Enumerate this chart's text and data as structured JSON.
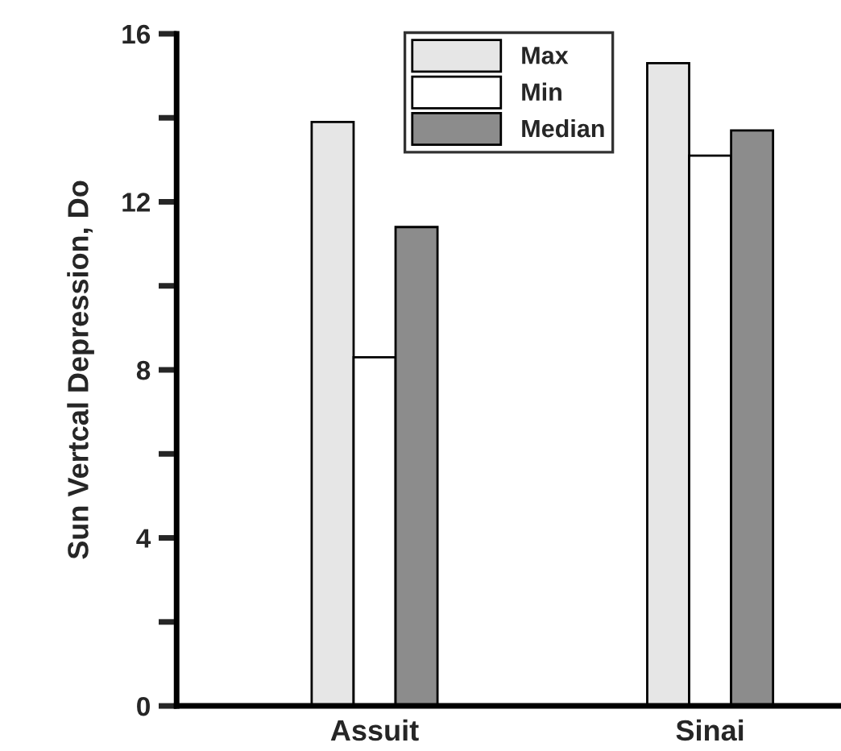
{
  "chart_data": {
    "type": "bar",
    "ylabel": "Sun Vertcal Depression, Do",
    "categories": [
      "Assuit",
      "Sinai"
    ],
    "series": [
      {
        "name": "Max",
        "color": "#e6e6e6",
        "values": [
          13.9,
          15.3
        ]
      },
      {
        "name": "Min",
        "color": "#ffffff",
        "values": [
          8.3,
          13.1
        ]
      },
      {
        "name": "Median",
        "color": "#8c8c8c",
        "values": [
          11.4,
          13.7
        ]
      }
    ],
    "ylim": [
      0,
      16
    ],
    "yticks": [
      0,
      {
        "value": 2,
        "label": null
      },
      4,
      {
        "value": 6,
        "label": null
      },
      8,
      {
        "value": 10,
        "label": null
      },
      12,
      {
        "value": 14,
        "label": null
      },
      16
    ],
    "grid": false,
    "legend": "top"
  }
}
